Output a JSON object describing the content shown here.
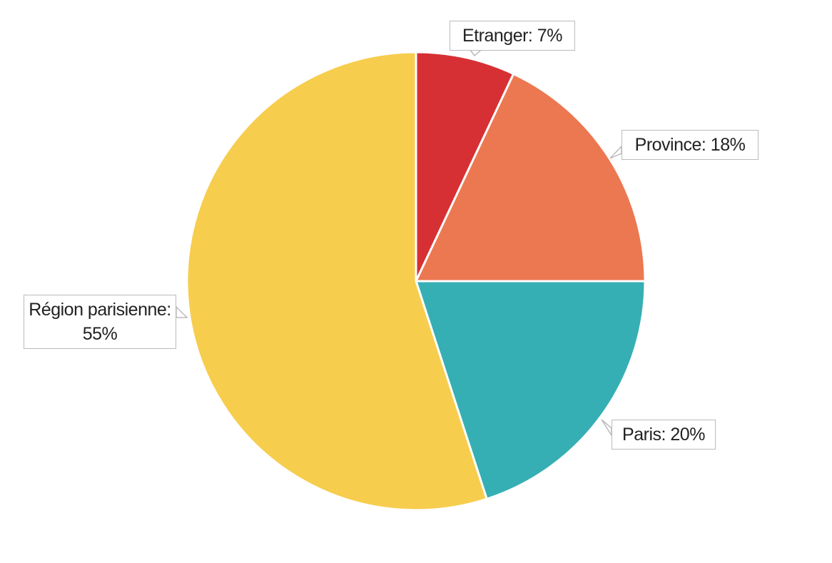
{
  "chart_data": {
    "type": "pie",
    "values": [
      7,
      18,
      20,
      55
    ],
    "value_labels": [
      "Etranger: 7%",
      "Province: 18%",
      "Paris: 20%",
      "Région parisienne: 55%"
    ],
    "colors": [
      "#d63034",
      "#ec7851",
      "#35afb4",
      "#f7cd4e"
    ]
  }
}
